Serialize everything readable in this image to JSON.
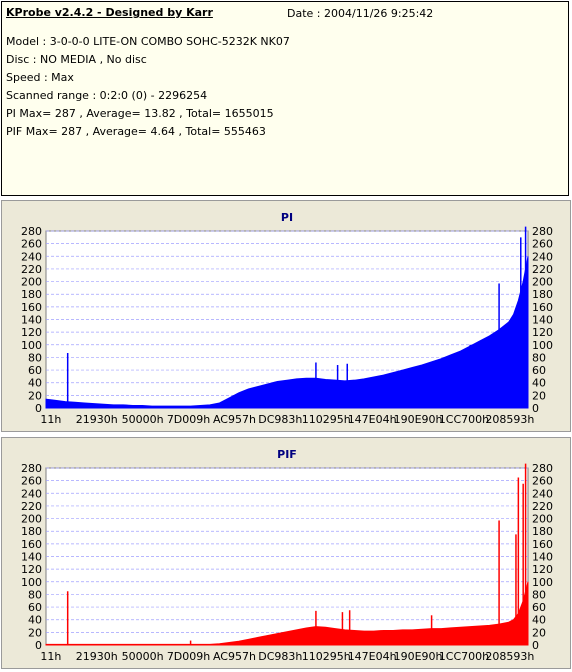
{
  "header": {
    "title": "KProbe v2.4.2 - Designed by Karr",
    "date": "Date : 2004/11/26 9:25:42",
    "lines": [
      "Model : 3-0-0-0 LITE-ON COMBO SOHC-5232K NK07",
      "Disc : NO MEDIA , No disc",
      "Speed : Max",
      "Scanned range : 0:2:0 (0) - 2296254",
      "PI Max= 287 , Average= 13.82 , Total= 1655015",
      "PIF Max= 287 , Average= 4.64 , Total= 555463"
    ]
  },
  "chart_data": [
    {
      "type": "area",
      "title": "PI",
      "color": "#0000ff",
      "ylim": [
        0,
        280
      ],
      "yticks": [
        0,
        20,
        40,
        60,
        80,
        100,
        120,
        140,
        160,
        180,
        200,
        220,
        240,
        260,
        280
      ],
      "xticks": [
        "11h",
        "21930h",
        "50000h",
        "7D009h",
        "AC957h",
        "DC983h",
        "110295h",
        "147E04h",
        "190E90h",
        "1CC700h",
        "208593h"
      ],
      "grid": true,
      "x": [
        0.0,
        0.02,
        0.04,
        0.06,
        0.08,
        0.1,
        0.12,
        0.14,
        0.16,
        0.18,
        0.2,
        0.22,
        0.24,
        0.26,
        0.28,
        0.3,
        0.32,
        0.34,
        0.36,
        0.38,
        0.4,
        0.42,
        0.44,
        0.46,
        0.48,
        0.5,
        0.52,
        0.54,
        0.56,
        0.58,
        0.6,
        0.62,
        0.64,
        0.66,
        0.68,
        0.7,
        0.72,
        0.74,
        0.76,
        0.78,
        0.8,
        0.82,
        0.84,
        0.86,
        0.88,
        0.9,
        0.92,
        0.94,
        0.96,
        0.97,
        0.98,
        0.99,
        1.0
      ],
      "values": [
        14,
        12,
        10,
        9,
        8,
        7,
        6,
        5,
        5,
        4,
        4,
        3,
        3,
        3,
        3,
        3,
        4,
        5,
        8,
        16,
        24,
        30,
        34,
        38,
        42,
        44,
        46,
        47,
        47,
        45,
        44,
        43,
        44,
        46,
        49,
        52,
        56,
        60,
        64,
        68,
        73,
        78,
        84,
        90,
        98,
        106,
        114,
        124,
        136,
        148,
        170,
        200,
        240
      ],
      "spikes": [
        [
          0.045,
          87
        ],
        [
          0.56,
          72
        ],
        [
          0.605,
          68
        ],
        [
          0.625,
          70
        ],
        [
          0.88,
          100
        ],
        [
          0.94,
          197
        ],
        [
          0.985,
          270
        ],
        [
          0.995,
          287
        ]
      ]
    },
    {
      "type": "area",
      "title": "PIF",
      "color": "#ff0000",
      "ylim": [
        0,
        280
      ],
      "yticks": [
        0,
        20,
        40,
        60,
        80,
        100,
        120,
        140,
        160,
        180,
        200,
        220,
        240,
        260,
        280
      ],
      "xticks": [
        "11h",
        "21930h",
        "50000h",
        "7D009h",
        "AC957h",
        "DC983h",
        "110295h",
        "147E04h",
        "190E90h",
        "1CC700h",
        "208593h"
      ],
      "grid": true,
      "x": [
        0.0,
        0.02,
        0.04,
        0.06,
        0.08,
        0.1,
        0.12,
        0.14,
        0.16,
        0.18,
        0.2,
        0.22,
        0.24,
        0.26,
        0.28,
        0.3,
        0.32,
        0.34,
        0.36,
        0.38,
        0.4,
        0.42,
        0.44,
        0.46,
        0.48,
        0.5,
        0.52,
        0.54,
        0.56,
        0.58,
        0.6,
        0.62,
        0.64,
        0.66,
        0.68,
        0.7,
        0.72,
        0.74,
        0.76,
        0.78,
        0.8,
        0.82,
        0.84,
        0.86,
        0.88,
        0.9,
        0.92,
        0.94,
        0.96,
        0.97,
        0.98,
        0.99,
        1.0
      ],
      "values": [
        1,
        1,
        1,
        1,
        1,
        1,
        1,
        1,
        1,
        1,
        1,
        1,
        1,
        1,
        1,
        1,
        1,
        1,
        2,
        4,
        6,
        9,
        12,
        15,
        18,
        21,
        24,
        27,
        29,
        28,
        26,
        24,
        23,
        22,
        22,
        23,
        23,
        24,
        24,
        25,
        26,
        26,
        27,
        28,
        29,
        30,
        31,
        33,
        36,
        40,
        50,
        70,
        100
      ],
      "spikes": [
        [
          0.045,
          85
        ],
        [
          0.3,
          7
        ],
        [
          0.56,
          54
        ],
        [
          0.615,
          52
        ],
        [
          0.63,
          55
        ],
        [
          0.8,
          47
        ],
        [
          0.94,
          197
        ],
        [
          0.975,
          175
        ],
        [
          0.98,
          265
        ],
        [
          0.99,
          255
        ],
        [
          0.995,
          287
        ]
      ]
    }
  ]
}
